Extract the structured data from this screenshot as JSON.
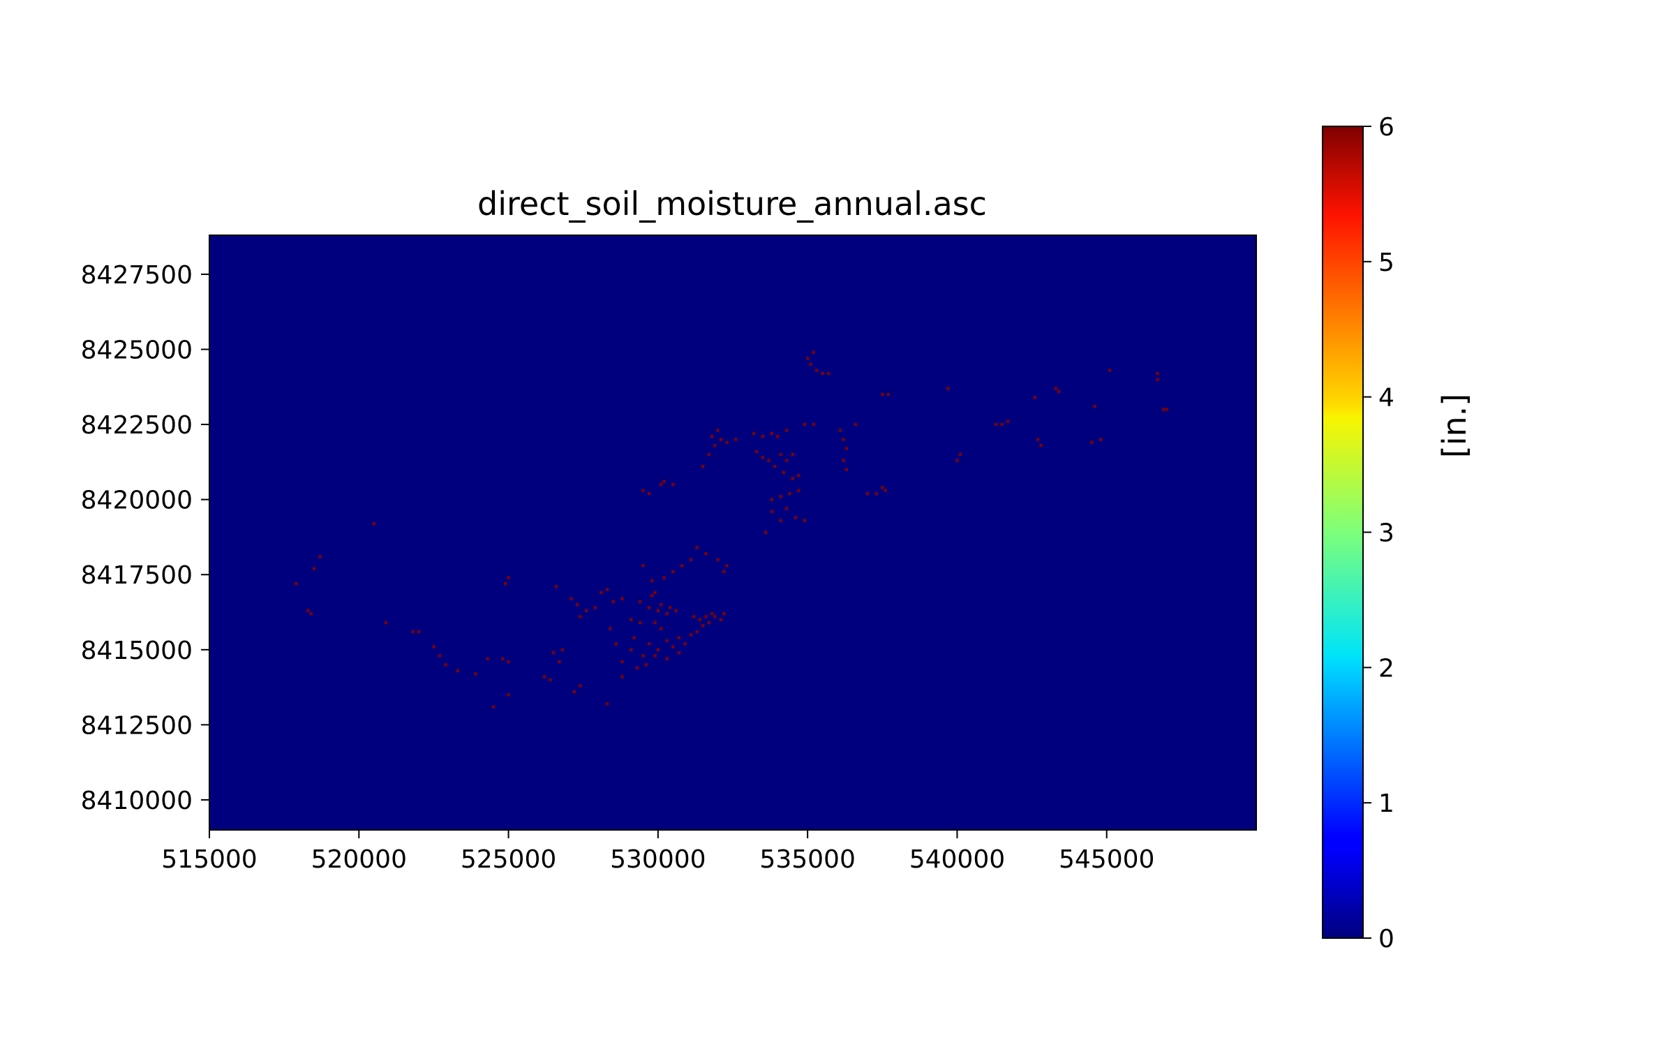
{
  "chart_data": {
    "type": "heatmap",
    "title": "direct_soil_moisture_annual.asc",
    "xlabel": "",
    "ylabel": "",
    "xlim": [
      515000,
      550000
    ],
    "ylim": [
      8409000,
      8428800
    ],
    "x_ticks": [
      515000,
      520000,
      525000,
      530000,
      535000,
      540000,
      545000
    ],
    "x_tick_labels": [
      "515000",
      "520000",
      "525000",
      "530000",
      "535000",
      "540000",
      "545000"
    ],
    "y_ticks": [
      8410000,
      8412500,
      8415000,
      8417500,
      8420000,
      8422500,
      8425000,
      8427500
    ],
    "y_tick_labels": [
      "8410000",
      "8412500",
      "8415000",
      "8417500",
      "8420000",
      "8422500",
      "8425000",
      "8427500"
    ],
    "colormap": "jet",
    "background_value": 0,
    "cell_value": 6,
    "grid": false,
    "colorbar": {
      "label": "[in.]",
      "range": [
        0,
        6
      ],
      "ticks": [
        0,
        1,
        2,
        3,
        4,
        5,
        6
      ],
      "tick_labels": [
        "0",
        "1",
        "2",
        "3",
        "4",
        "5",
        "6"
      ],
      "placement": "right"
    },
    "colors": {
      "background": "#00007f",
      "cell": "#7f0000"
    },
    "cells": [
      [
        517900,
        8417200
      ],
      [
        518300,
        8416300
      ],
      [
        518400,
        8416200
      ],
      [
        518700,
        8418100
      ],
      [
        518500,
        8417700
      ],
      [
        520500,
        8419200
      ],
      [
        520900,
        8415900
      ],
      [
        521800,
        8415600
      ],
      [
        522000,
        8415600
      ],
      [
        522500,
        8415100
      ],
      [
        522700,
        8414800
      ],
      [
        522900,
        8414500
      ],
      [
        523300,
        8414300
      ],
      [
        523900,
        8414200
      ],
      [
        524300,
        8414700
      ],
      [
        524800,
        8414700
      ],
      [
        525000,
        8414600
      ],
      [
        525000,
        8413500
      ],
      [
        524500,
        8413100
      ],
      [
        525000,
        8417400
      ],
      [
        524900,
        8417200
      ],
      [
        526200,
        8414100
      ],
      [
        526400,
        8414000
      ],
      [
        526500,
        8414900
      ],
      [
        526800,
        8415000
      ],
      [
        526700,
        8414600
      ],
      [
        526600,
        8417100
      ],
      [
        527100,
        8416700
      ],
      [
        527300,
        8416500
      ],
      [
        527400,
        8416100
      ],
      [
        527600,
        8416300
      ],
      [
        527400,
        8413800
      ],
      [
        527200,
        8413600
      ],
      [
        527900,
        8416400
      ],
      [
        528100,
        8416900
      ],
      [
        528300,
        8417000
      ],
      [
        528500,
        8416600
      ],
      [
        528800,
        8416700
      ],
      [
        528400,
        8415700
      ],
      [
        528600,
        8415200
      ],
      [
        528300,
        8413200
      ],
      [
        528800,
        8414100
      ],
      [
        528800,
        8414600
      ],
      [
        529100,
        8415000
      ],
      [
        529200,
        8415400
      ],
      [
        529100,
        8416000
      ],
      [
        529400,
        8415900
      ],
      [
        529400,
        8416600
      ],
      [
        529700,
        8416400
      ],
      [
        529800,
        8416800
      ],
      [
        530000,
        8416300
      ],
      [
        530100,
        8416500
      ],
      [
        530300,
        8416200
      ],
      [
        530400,
        8416400
      ],
      [
        530600,
        8416300
      ],
      [
        529900,
        8415900
      ],
      [
        530100,
        8415700
      ],
      [
        529700,
        8415200
      ],
      [
        530000,
        8415000
      ],
      [
        530300,
        8415300
      ],
      [
        530500,
        8415100
      ],
      [
        530700,
        8415400
      ],
      [
        530900,
        8415200
      ],
      [
        531100,
        8415500
      ],
      [
        531300,
        8415600
      ],
      [
        531500,
        8415800
      ],
      [
        531700,
        8415900
      ],
      [
        531900,
        8416100
      ],
      [
        532100,
        8416000
      ],
      [
        531200,
        8416100
      ],
      [
        531400,
        8416000
      ],
      [
        531600,
        8416100
      ],
      [
        531800,
        8416200
      ],
      [
        532200,
        8416200
      ],
      [
        529500,
        8417800
      ],
      [
        529800,
        8417300
      ],
      [
        530200,
        8417400
      ],
      [
        530500,
        8417600
      ],
      [
        530800,
        8417800
      ],
      [
        531100,
        8418000
      ],
      [
        531300,
        8418400
      ],
      [
        531600,
        8418200
      ],
      [
        532000,
        8418000
      ],
      [
        532300,
        8417800
      ],
      [
        532200,
        8417600
      ],
      [
        529500,
        8414800
      ],
      [
        529600,
        8414500
      ],
      [
        529900,
        8414800
      ],
      [
        530300,
        8414700
      ],
      [
        530700,
        8414900
      ],
      [
        529300,
        8414400
      ],
      [
        529900,
        8416900
      ],
      [
        529500,
        8420300
      ],
      [
        529700,
        8420200
      ],
      [
        530100,
        8420500
      ],
      [
        530200,
        8420600
      ],
      [
        530500,
        8420500
      ],
      [
        531500,
        8421100
      ],
      [
        531700,
        8421500
      ],
      [
        531900,
        8421800
      ],
      [
        531800,
        8422100
      ],
      [
        532100,
        8422000
      ],
      [
        532300,
        8421900
      ],
      [
        532600,
        8422000
      ],
      [
        532000,
        8422300
      ],
      [
        533200,
        8422200
      ],
      [
        533500,
        8422100
      ],
      [
        533800,
        8422200
      ],
      [
        534000,
        8422100
      ],
      [
        534300,
        8422300
      ],
      [
        533300,
        8421600
      ],
      [
        533500,
        8421400
      ],
      [
        533700,
        8421300
      ],
      [
        534100,
        8421500
      ],
      [
        534300,
        8421300
      ],
      [
        534500,
        8421500
      ],
      [
        533900,
        8421100
      ],
      [
        534200,
        8420900
      ],
      [
        534500,
        8420700
      ],
      [
        534700,
        8420800
      ],
      [
        533800,
        8420000
      ],
      [
        534100,
        8420100
      ],
      [
        534400,
        8420200
      ],
      [
        534700,
        8420300
      ],
      [
        534300,
        8419700
      ],
      [
        534100,
        8419300
      ],
      [
        534600,
        8419400
      ],
      [
        534900,
        8419300
      ],
      [
        533600,
        8418900
      ],
      [
        533800,
        8419600
      ],
      [
        534900,
        8422500
      ],
      [
        535200,
        8422500
      ],
      [
        535000,
        8424700
      ],
      [
        535100,
        8424500
      ],
      [
        535200,
        8424900
      ],
      [
        535300,
        8424300
      ],
      [
        535500,
        8424200
      ],
      [
        535700,
        8424200
      ],
      [
        536100,
        8422300
      ],
      [
        536200,
        8422000
      ],
      [
        536300,
        8421700
      ],
      [
        536200,
        8421300
      ],
      [
        536300,
        8421000
      ],
      [
        536600,
        8422500
      ],
      [
        537000,
        8420200
      ],
      [
        537300,
        8420200
      ],
      [
        537500,
        8420400
      ],
      [
        537600,
        8420300
      ],
      [
        537500,
        8423500
      ],
      [
        537700,
        8423500
      ],
      [
        539700,
        8423700
      ],
      [
        540100,
        8421500
      ],
      [
        540000,
        8421300
      ],
      [
        541300,
        8422500
      ],
      [
        541500,
        8422500
      ],
      [
        541700,
        8422600
      ],
      [
        542600,
        8423400
      ],
      [
        542800,
        8421800
      ],
      [
        542700,
        8422000
      ],
      [
        543300,
        8423700
      ],
      [
        543400,
        8423600
      ],
      [
        544500,
        8421900
      ],
      [
        544800,
        8422000
      ],
      [
        544600,
        8423100
      ],
      [
        545100,
        8424300
      ],
      [
        546700,
        8424200
      ],
      [
        546700,
        8424000
      ],
      [
        546900,
        8423000
      ],
      [
        547000,
        8423000
      ]
    ]
  }
}
